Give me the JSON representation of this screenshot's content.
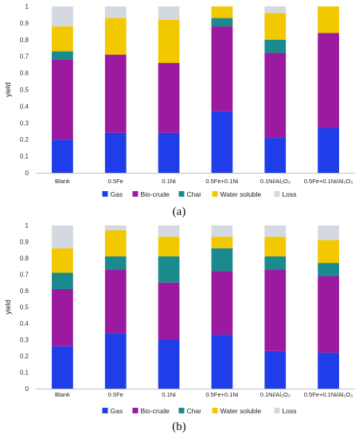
{
  "chart_data": [
    {
      "type": "bar",
      "stacked": true,
      "panel_label": "(a)",
      "ylabel": "yield",
      "ylim": [
        0,
        1
      ],
      "yticks": [
        0,
        0.1,
        0.2,
        0.3,
        0.4,
        0.5,
        0.6,
        0.7,
        0.8,
        0.9,
        1
      ],
      "categories": [
        "Blank",
        "0.5Fe",
        "0.1Ni",
        "0.5Fe+0.1Ni",
        "0.1Ni/Al₂O₃",
        "0.5Fe+0.1Ni/Al₂O₃"
      ],
      "legend_position": "bottom",
      "series": [
        {
          "name": "Gas",
          "color": "#1f3de8",
          "values": [
            0.2,
            0.24,
            0.24,
            0.37,
            0.21,
            0.27
          ]
        },
        {
          "name": "Bio-crude",
          "color": "#9b1aa0",
          "values": [
            0.48,
            0.47,
            0.42,
            0.51,
            0.51,
            0.57
          ]
        },
        {
          "name": "Char",
          "color": "#1b8a8e",
          "values": [
            0.05,
            0.0,
            0.0,
            0.05,
            0.08,
            0.0
          ]
        },
        {
          "name": "Water soluble",
          "color": "#f2c800",
          "values": [
            0.15,
            0.22,
            0.26,
            0.07,
            0.16,
            0.16
          ]
        },
        {
          "name": "Loss",
          "color": "#d4d8e0",
          "values": [
            0.12,
            0.07,
            0.08,
            0.0,
            0.04,
            0.0
          ]
        }
      ]
    },
    {
      "type": "bar",
      "stacked": true,
      "panel_label": "(b)",
      "ylabel": "yield",
      "ylim": [
        0,
        1
      ],
      "yticks": [
        0,
        0.1,
        0.2,
        0.3,
        0.4,
        0.5,
        0.6,
        0.7,
        0.8,
        0.9,
        1
      ],
      "categories": [
        "Blank",
        "0.5Fe",
        "0.1Ni",
        "0.5Fe+0.1Ni",
        "0.1Ni/Al₂O₃",
        "0.5Fe+0.1Ni/Al₂O₃"
      ],
      "legend_position": "bottom",
      "series": [
        {
          "name": "Gas",
          "color": "#1f3de8",
          "values": [
            0.26,
            0.34,
            0.3,
            0.33,
            0.23,
            0.22
          ]
        },
        {
          "name": "Bio-crude",
          "color": "#9b1aa0",
          "values": [
            0.35,
            0.39,
            0.35,
            0.39,
            0.5,
            0.47
          ]
        },
        {
          "name": "Char",
          "color": "#1b8a8e",
          "values": [
            0.1,
            0.08,
            0.16,
            0.14,
            0.08,
            0.08
          ]
        },
        {
          "name": "Water soluble",
          "color": "#f2c800",
          "values": [
            0.15,
            0.16,
            0.12,
            0.07,
            0.12,
            0.14
          ]
        },
        {
          "name": "Loss",
          "color": "#d4d8e0",
          "values": [
            0.14,
            0.03,
            0.07,
            0.07,
            0.07,
            0.09
          ]
        }
      ]
    }
  ]
}
